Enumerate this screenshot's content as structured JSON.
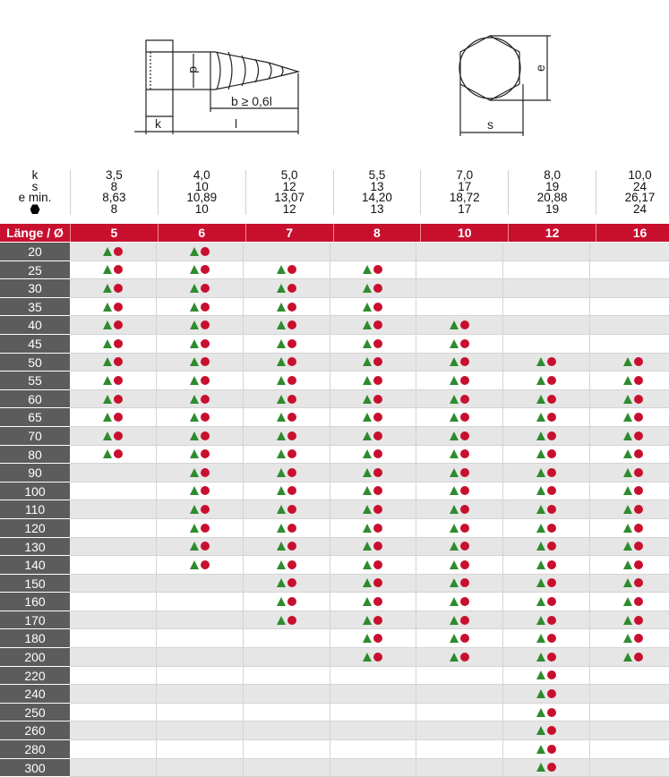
{
  "diagram": {
    "k": "k",
    "l": "l",
    "d": "d",
    "b": "b ≥ 0,6l",
    "s": "s",
    "e": "e"
  },
  "specs": {
    "labels": [
      "k",
      "s",
      "e min."
    ],
    "hex_icon": "hex-wrench-icon",
    "k": [
      "3,5",
      "4,0",
      "5,0",
      "5,5",
      "7,0",
      "8,0",
      "10,0"
    ],
    "s": [
      "8",
      "10",
      "12",
      "13",
      "17",
      "19",
      "24"
    ],
    "e_min": [
      "8,63",
      "10,89",
      "13,07",
      "14,20",
      "18,72",
      "20,88",
      "26,17"
    ],
    "wrench": [
      "8",
      "10",
      "12",
      "13",
      "17",
      "19",
      "24"
    ]
  },
  "header": {
    "label": "Länge / Ø",
    "diameters": [
      "5",
      "6",
      "7",
      "8",
      "10",
      "12",
      "16"
    ]
  },
  "colors": {
    "red": "#c8102e",
    "green": "#2e8b2e",
    "label_bg": "#5c5c5c"
  },
  "availability_icons": [
    "triangle-icon",
    "circle-icon"
  ],
  "lengths": [
    "20",
    "25",
    "30",
    "35",
    "40",
    "45",
    "50",
    "55",
    "60",
    "65",
    "70",
    "80",
    "90",
    "100",
    "110",
    "120",
    "130",
    "140",
    "150",
    "160",
    "170",
    "180",
    "200",
    "220",
    "240",
    "250",
    "260",
    "280",
    "300"
  ],
  "ranges": [
    [
      "20",
      "80"
    ],
    [
      "20",
      "140"
    ],
    [
      "25",
      "170"
    ],
    [
      "25",
      "200"
    ],
    [
      "40",
      "200"
    ],
    [
      "50",
      "300"
    ],
    [
      "50",
      "200"
    ]
  ]
}
